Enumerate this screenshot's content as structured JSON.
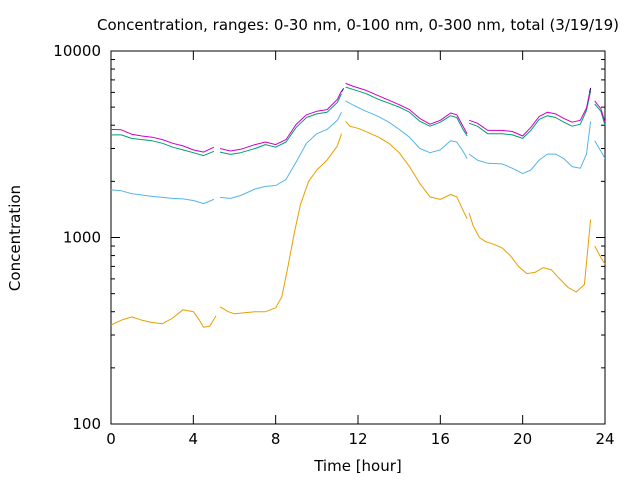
{
  "chart_data": {
    "type": "line",
    "title": "Concentration, ranges: 0-30 nm, 0-100 nm, 0-300 nm, total (3/19/19)",
    "xlabel": "Time [hour]",
    "ylabel": "Concentration",
    "xlim": [
      0,
      24
    ],
    "ylim": [
      100,
      10000
    ],
    "y_scale": "log",
    "grid": false,
    "legend": "none",
    "x_ticks": [
      0,
      4,
      8,
      12,
      16,
      20,
      24
    ],
    "x_tick_labels": [
      "0",
      "4",
      "8",
      "12",
      "16",
      "20",
      "24"
    ],
    "y_ticks": [
      100,
      1000,
      10000
    ],
    "y_tick_labels": [
      "100",
      "1000",
      "10000"
    ],
    "series": [
      {
        "color": "#e69f00",
        "segments": [
          [
            [
              0,
              340
            ],
            [
              0.5,
              360
            ],
            [
              1,
              375
            ],
            [
              1.5,
              360
            ],
            [
              2,
              350
            ],
            [
              2.5,
              345
            ],
            [
              3,
              370
            ],
            [
              3.5,
              410
            ],
            [
              4,
              400
            ],
            [
              4.3,
              360
            ],
            [
              4.5,
              330
            ],
            [
              4.8,
              335
            ],
            [
              5.1,
              380
            ]
          ],
          [
            [
              5.3,
              425
            ],
            [
              5.7,
              400
            ],
            [
              6,
              390
            ],
            [
              6.5,
              395
            ],
            [
              7,
              400
            ],
            [
              7.5,
              400
            ],
            [
              8,
              420
            ],
            [
              8.3,
              480
            ],
            [
              8.6,
              700
            ],
            [
              8.9,
              1050
            ],
            [
              9.2,
              1500
            ],
            [
              9.6,
              2000
            ],
            [
              10,
              2300
            ],
            [
              10.5,
              2600
            ],
            [
              11,
              3100
            ],
            [
              11.2,
              3600
            ]
          ],
          [
            [
              11.4,
              4200
            ],
            [
              11.6,
              3950
            ],
            [
              12,
              3850
            ],
            [
              12.5,
              3650
            ],
            [
              13,
              3450
            ],
            [
              13.5,
              3200
            ],
            [
              14,
              2850
            ],
            [
              14.5,
              2400
            ],
            [
              15,
              1950
            ],
            [
              15.5,
              1650
            ],
            [
              16,
              1600
            ],
            [
              16.5,
              1700
            ],
            [
              16.8,
              1650
            ],
            [
              17.1,
              1400
            ],
            [
              17.3,
              1260
            ]
          ],
          [
            [
              17.4,
              1350
            ],
            [
              17.6,
              1150
            ],
            [
              17.9,
              1000
            ],
            [
              18.2,
              950
            ],
            [
              18.6,
              920
            ],
            [
              19,
              880
            ],
            [
              19.4,
              800
            ],
            [
              19.8,
              700
            ],
            [
              20.2,
              640
            ],
            [
              20.6,
              650
            ],
            [
              21,
              690
            ],
            [
              21.4,
              670
            ],
            [
              21.8,
              600
            ],
            [
              22.2,
              540
            ],
            [
              22.6,
              510
            ],
            [
              23,
              560
            ],
            [
              23.3,
              1250
            ]
          ],
          [
            [
              23.5,
              900
            ],
            [
              23.8,
              780
            ],
            [
              24,
              720
            ]
          ]
        ]
      },
      {
        "color": "#56b4e9",
        "segments": [
          [
            [
              0,
              1800
            ],
            [
              0.5,
              1780
            ],
            [
              1,
              1720
            ],
            [
              1.5,
              1690
            ],
            [
              2,
              1660
            ],
            [
              2.5,
              1640
            ],
            [
              3,
              1620
            ],
            [
              3.5,
              1610
            ],
            [
              4,
              1580
            ],
            [
              4.5,
              1520
            ],
            [
              5,
              1600
            ]
          ],
          [
            [
              5.3,
              1640
            ],
            [
              5.8,
              1620
            ],
            [
              6.3,
              1680
            ],
            [
              7,
              1820
            ],
            [
              7.5,
              1880
            ],
            [
              8,
              1900
            ],
            [
              8.5,
              2050
            ],
            [
              9,
              2550
            ],
            [
              9.5,
              3200
            ],
            [
              10,
              3600
            ],
            [
              10.5,
              3800
            ],
            [
              11,
              4250
            ],
            [
              11.2,
              4700
            ]
          ],
          [
            [
              11.4,
              5400
            ],
            [
              11.8,
              5100
            ],
            [
              12.4,
              4750
            ],
            [
              13,
              4450
            ],
            [
              13.5,
              4150
            ],
            [
              14,
              3800
            ],
            [
              14.5,
              3450
            ],
            [
              15,
              3000
            ],
            [
              15.5,
              2850
            ],
            [
              16,
              2950
            ],
            [
              16.5,
              3300
            ],
            [
              16.8,
              3250
            ],
            [
              17.1,
              2900
            ],
            [
              17.3,
              2650
            ]
          ],
          [
            [
              17.4,
              2800
            ],
            [
              17.8,
              2600
            ],
            [
              18.3,
              2500
            ],
            [
              19,
              2480
            ],
            [
              19.5,
              2350
            ],
            [
              20,
              2200
            ],
            [
              20.4,
              2300
            ],
            [
              20.8,
              2600
            ],
            [
              21.2,
              2800
            ],
            [
              21.6,
              2800
            ],
            [
              22,
              2650
            ],
            [
              22.4,
              2400
            ],
            [
              22.8,
              2350
            ],
            [
              23.1,
              2800
            ],
            [
              23.3,
              4200
            ]
          ],
          [
            [
              23.5,
              3300
            ],
            [
              23.8,
              2900
            ],
            [
              24,
              2650
            ]
          ]
        ]
      },
      {
        "color": "#009e73",
        "segments": [
          [
            [
              0,
              3550
            ],
            [
              0.5,
              3550
            ],
            [
              1,
              3400
            ],
            [
              1.5,
              3350
            ],
            [
              2,
              3300
            ],
            [
              2.5,
              3200
            ],
            [
              3,
              3050
            ],
            [
              3.5,
              2950
            ],
            [
              4,
              2850
            ],
            [
              4.5,
              2750
            ],
            [
              5,
              2900
            ]
          ],
          [
            [
              5.3,
              2870
            ],
            [
              5.8,
              2790
            ],
            [
              6.3,
              2850
            ],
            [
              7,
              3000
            ],
            [
              7.5,
              3150
            ],
            [
              8,
              3050
            ],
            [
              8.5,
              3250
            ],
            [
              9,
              3900
            ],
            [
              9.5,
              4400
            ],
            [
              10,
              4600
            ],
            [
              10.5,
              4700
            ],
            [
              11,
              5300
            ],
            [
              11.2,
              5900
            ]
          ],
          [
            [
              11.4,
              6400
            ],
            [
              11.8,
              6200
            ],
            [
              12.4,
              5900
            ],
            [
              13,
              5500
            ],
            [
              13.5,
              5250
            ],
            [
              14,
              5000
            ],
            [
              14.5,
              4700
            ],
            [
              15,
              4200
            ],
            [
              15.5,
              3950
            ],
            [
              16,
              4150
            ],
            [
              16.5,
              4500
            ],
            [
              16.8,
              4400
            ],
            [
              17.1,
              3800
            ],
            [
              17.3,
              3500
            ]
          ],
          [
            [
              17.4,
              4100
            ],
            [
              17.8,
              3950
            ],
            [
              18.3,
              3600
            ],
            [
              19,
              3600
            ],
            [
              19.5,
              3550
            ],
            [
              20,
              3400
            ],
            [
              20.4,
              3750
            ],
            [
              20.8,
              4300
            ],
            [
              21.2,
              4500
            ],
            [
              21.6,
              4400
            ],
            [
              22,
              4150
            ],
            [
              22.4,
              3950
            ],
            [
              22.8,
              4050
            ],
            [
              23.1,
              4800
            ],
            [
              23.3,
              6100
            ]
          ],
          [
            [
              23.5,
              5200
            ],
            [
              23.8,
              4750
            ],
            [
              24,
              4000
            ]
          ]
        ]
      },
      {
        "color": "#cc00cc",
        "segments": [
          [
            [
              0,
              3800
            ],
            [
              0.5,
              3780
            ],
            [
              1,
              3580
            ],
            [
              1.5,
              3500
            ],
            [
              2,
              3450
            ],
            [
              2.5,
              3350
            ],
            [
              3,
              3200
            ],
            [
              3.5,
              3100
            ],
            [
              4,
              2950
            ],
            [
              4.5,
              2870
            ],
            [
              5,
              3050
            ]
          ],
          [
            [
              5.3,
              3000
            ],
            [
              5.8,
              2910
            ],
            [
              6.3,
              2970
            ],
            [
              7,
              3150
            ],
            [
              7.5,
              3250
            ],
            [
              8,
              3150
            ],
            [
              8.5,
              3350
            ],
            [
              9,
              4050
            ],
            [
              9.5,
              4550
            ],
            [
              10,
              4750
            ],
            [
              10.5,
              4850
            ],
            [
              11,
              5500
            ],
            [
              11.2,
              6100
            ]
          ],
          [
            [
              11.4,
              6700
            ],
            [
              11.8,
              6450
            ],
            [
              12.4,
              6150
            ],
            [
              13,
              5750
            ],
            [
              13.5,
              5450
            ],
            [
              14,
              5150
            ],
            [
              14.5,
              4850
            ],
            [
              15,
              4350
            ],
            [
              15.5,
              4050
            ],
            [
              16,
              4250
            ],
            [
              16.5,
              4650
            ],
            [
              16.8,
              4550
            ],
            [
              17.1,
              3950
            ],
            [
              17.3,
              3600
            ]
          ],
          [
            [
              17.4,
              4250
            ],
            [
              17.8,
              4100
            ],
            [
              18.3,
              3750
            ],
            [
              19,
              3750
            ],
            [
              19.5,
              3700
            ],
            [
              20,
              3500
            ],
            [
              20.4,
              3900
            ],
            [
              20.8,
              4450
            ],
            [
              21.2,
              4700
            ],
            [
              21.6,
              4600
            ],
            [
              22,
              4350
            ],
            [
              22.4,
              4150
            ],
            [
              22.8,
              4250
            ],
            [
              23.1,
              4950
            ],
            [
              23.3,
              6350
            ]
          ],
          [
            [
              23.5,
              5400
            ],
            [
              23.8,
              4900
            ],
            [
              24,
              4150
            ]
          ]
        ]
      },
      {
        "color": "#000080",
        "segments": [
          [
            [
              11.2,
              6050
            ],
            [
              11.3,
              6300
            ]
          ],
          [
            [
              23.25,
              6000
            ],
            [
              23.3,
              6300
            ]
          ]
        ]
      }
    ]
  }
}
